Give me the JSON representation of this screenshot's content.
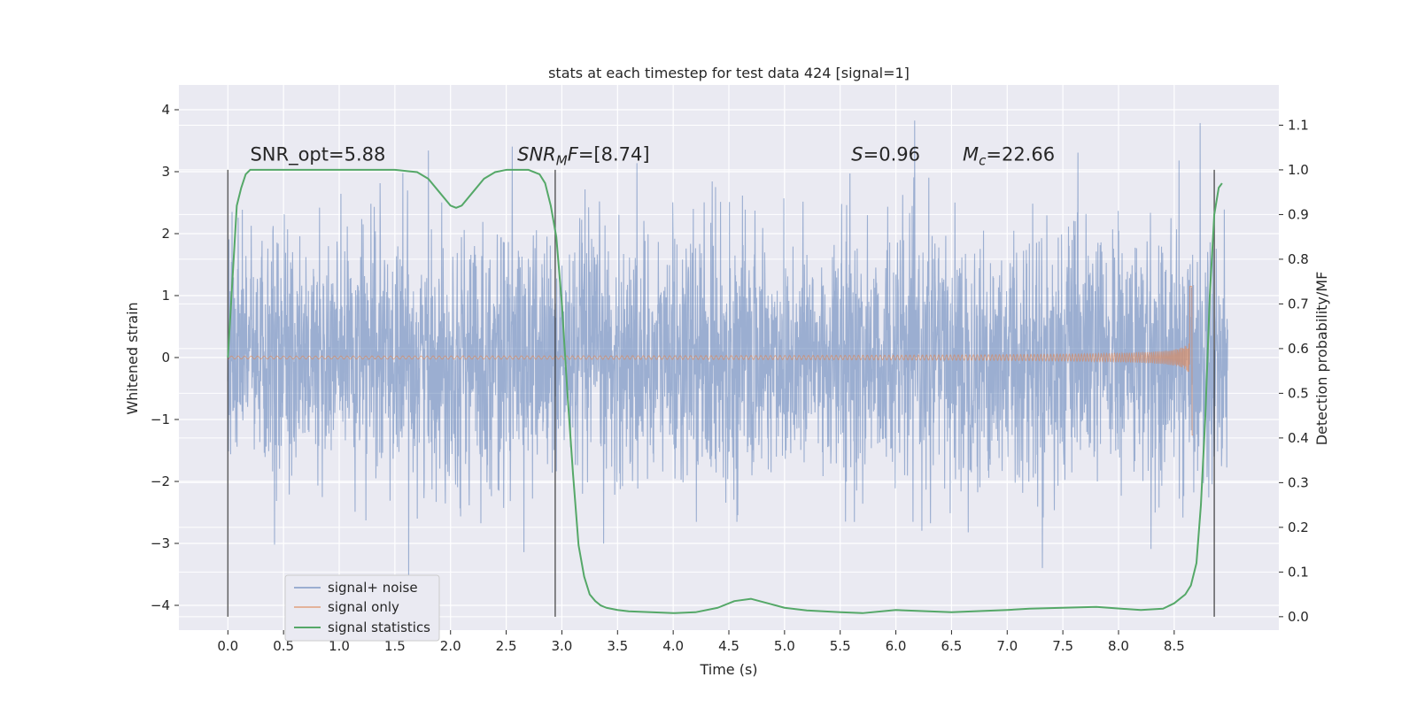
{
  "chart_data": {
    "type": "line",
    "title": "stats at each timestep for test data 424 [signal=1]",
    "xlabel": "Time (s)",
    "ylabel": "Whitened strain",
    "y2label": "Detection probability/MF",
    "xlim": [
      -0.44,
      9.44
    ],
    "ylim": [
      -4.4,
      4.4
    ],
    "y2lim": [
      -0.03,
      1.19
    ],
    "xticks": [
      0.0,
      0.5,
      1.0,
      1.5,
      2.0,
      2.5,
      3.0,
      3.5,
      4.0,
      4.5,
      5.0,
      5.5,
      6.0,
      6.5,
      7.0,
      7.5,
      8.0,
      8.5
    ],
    "xtick_labels": [
      "0.0",
      "0.5",
      "1.0",
      "1.5",
      "2.0",
      "2.5",
      "3.0",
      "3.5",
      "4.0",
      "4.5",
      "5.0",
      "5.5",
      "6.0",
      "6.5",
      "7.0",
      "7.5",
      "8.0",
      "8.5"
    ],
    "yticks": [
      4,
      3,
      2,
      1,
      0,
      -1,
      -2,
      -3,
      -4
    ],
    "ytick_labels": [
      "4",
      "3",
      "2",
      "1",
      "0",
      "−1",
      "−2",
      "−3",
      "−4"
    ],
    "y2ticks": [
      1.1,
      1.0,
      0.9,
      0.8,
      0.7,
      0.6,
      0.5,
      0.4,
      0.3,
      0.2,
      0.1,
      0.0
    ],
    "y2tick_labels": [
      "1.1",
      "1.0",
      "0.9",
      "0.8",
      "0.7",
      "0.6",
      "0.5",
      "0.4",
      "0.3",
      "0.2",
      "0.1",
      "0.0"
    ],
    "grid": true,
    "legend_position": "lower-left",
    "series": [
      {
        "name": "signal+ noise",
        "axis": "left",
        "color": "#4c72b0",
        "kind": "noise",
        "t_range": [
          0.0,
          8.98
        ],
        "approx_std": 1.0,
        "approx_extremes": [
          4.05,
          -3.95
        ]
      },
      {
        "name": "signal only",
        "axis": "left",
        "color": "#dd8452",
        "kind": "chirp",
        "t_range": [
          0.0,
          8.67
        ],
        "peak_time": 8.66,
        "peak_amplitude": 1.15,
        "min_amplitude": -1.25
      },
      {
        "name": "signal statistics",
        "axis": "right",
        "color": "#55a868",
        "x": [
          0.0,
          0.04,
          0.08,
          0.12,
          0.16,
          0.2,
          0.3,
          0.5,
          1.0,
          1.5,
          1.7,
          1.8,
          1.9,
          2.0,
          2.05,
          2.1,
          2.2,
          2.3,
          2.4,
          2.5,
          2.7,
          2.8,
          2.85,
          2.9,
          2.95,
          3.0,
          3.05,
          3.1,
          3.15,
          3.2,
          3.25,
          3.3,
          3.35,
          3.4,
          3.5,
          3.6,
          3.8,
          4.0,
          4.2,
          4.4,
          4.55,
          4.7,
          4.85,
          5.0,
          5.2,
          5.5,
          5.7,
          6.0,
          6.5,
          7.0,
          7.2,
          7.5,
          7.8,
          8.2,
          8.4,
          8.5,
          8.6,
          8.65,
          8.7,
          8.74,
          8.78,
          8.82,
          8.86,
          8.9,
          8.93
        ],
        "y": [
          0.58,
          0.75,
          0.92,
          0.96,
          0.99,
          1.0,
          1.0,
          1.0,
          1.0,
          1.0,
          0.995,
          0.98,
          0.95,
          0.92,
          0.915,
          0.92,
          0.95,
          0.98,
          0.995,
          1.0,
          1.0,
          0.99,
          0.97,
          0.92,
          0.85,
          0.7,
          0.5,
          0.32,
          0.16,
          0.09,
          0.05,
          0.035,
          0.025,
          0.02,
          0.015,
          0.012,
          0.01,
          0.008,
          0.01,
          0.02,
          0.035,
          0.04,
          0.03,
          0.02,
          0.014,
          0.01,
          0.008,
          0.015,
          0.01,
          0.015,
          0.018,
          0.02,
          0.022,
          0.015,
          0.018,
          0.03,
          0.05,
          0.07,
          0.12,
          0.25,
          0.45,
          0.72,
          0.9,
          0.96,
          0.97
        ]
      }
    ],
    "vertical_lines": [
      0.0,
      2.94,
      8.86
    ],
    "annotations": [
      {
        "text": "SNR_opt=5.88",
        "x": 0.2,
        "y": 3.18
      },
      {
        "text": "SNR",
        "sub": "M",
        "after": "F=[8.74]",
        "italic_main": true,
        "x": 2.6,
        "y": 3.18
      },
      {
        "text": "S",
        "after": "=0.96",
        "italic_main": true,
        "x": 5.6,
        "y": 3.18
      },
      {
        "text": "M",
        "sub": "c",
        "after": "=22.66",
        "italic_main": true,
        "x": 6.6,
        "y": 3.18
      }
    ],
    "colors": {
      "plot_background": "#eaeaf2",
      "grid": "#ffffff",
      "vline": "#2f2f2f"
    }
  }
}
